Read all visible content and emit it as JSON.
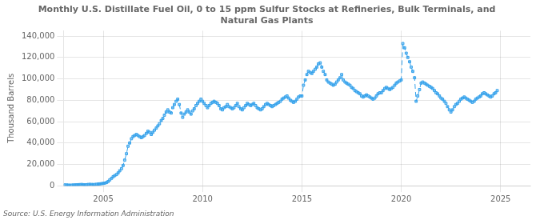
{
  "chart_data": {
    "type": "line",
    "title": "Monthly U.S. Distillate Fuel Oil, 0 to 15 ppm Sulfur Stocks at Refineries, Bulk Terminals, and\nNatural Gas Plants",
    "ylabel": "Thousand Barrels",
    "annotations": [
      "Source: U.S. Energy Information Administration"
    ],
    "marker": "square",
    "line_style": "dashed",
    "grid": true,
    "xlim": [
      2003.0,
      2026.5
    ],
    "xticks": [
      2005,
      2010,
      2015,
      2020,
      2025
    ],
    "ylim": [
      0,
      145000
    ],
    "yticks": [
      0,
      {
        "value": 20000,
        "label": "20,000"
      },
      {
        "value": 40000,
        "label": "40,000"
      },
      {
        "value": 60000,
        "label": "60,000"
      },
      {
        "value": 80000,
        "label": "80,000"
      },
      {
        "value": 100000,
        "label": "100,000"
      },
      {
        "value": 120000,
        "label": "120,000"
      },
      {
        "value": 140000,
        "label": "140,000"
      }
    ],
    "x": [
      2003.08,
      2003.17,
      2003.25,
      2003.33,
      2003.42,
      2003.5,
      2003.58,
      2003.67,
      2003.75,
      2003.83,
      2003.92,
      2004.0,
      2004.08,
      2004.17,
      2004.25,
      2004.33,
      2004.42,
      2004.5,
      2004.58,
      2004.67,
      2004.75,
      2004.83,
      2004.92,
      2005.0,
      2005.08,
      2005.17,
      2005.25,
      2005.33,
      2005.42,
      2005.5,
      2005.58,
      2005.67,
      2005.75,
      2005.83,
      2005.92,
      2006.0,
      2006.08,
      2006.17,
      2006.25,
      2006.33,
      2006.42,
      2006.5,
      2006.58,
      2006.67,
      2006.75,
      2006.83,
      2006.92,
      2007.0,
      2007.08,
      2007.17,
      2007.25,
      2007.33,
      2007.42,
      2007.5,
      2007.58,
      2007.67,
      2007.75,
      2007.83,
      2007.92,
      2008.0,
      2008.08,
      2008.17,
      2008.25,
      2008.33,
      2008.42,
      2008.5,
      2008.58,
      2008.67,
      2008.75,
      2008.83,
      2008.92,
      2009.0,
      2009.08,
      2009.17,
      2009.25,
      2009.33,
      2009.42,
      2009.5,
      2009.58,
      2009.67,
      2009.75,
      2009.83,
      2009.92,
      2010.0,
      2010.08,
      2010.17,
      2010.25,
      2010.33,
      2010.42,
      2010.5,
      2010.58,
      2010.67,
      2010.75,
      2010.83,
      2010.92,
      2011.0,
      2011.08,
      2011.17,
      2011.25,
      2011.33,
      2011.42,
      2011.5,
      2011.58,
      2011.67,
      2011.75,
      2011.83,
      2011.92,
      2012.0,
      2012.08,
      2012.17,
      2012.25,
      2012.33,
      2012.42,
      2012.5,
      2012.58,
      2012.67,
      2012.75,
      2012.83,
      2012.92,
      2013.0,
      2013.08,
      2013.17,
      2013.25,
      2013.33,
      2013.42,
      2013.5,
      2013.58,
      2013.67,
      2013.75,
      2013.83,
      2013.92,
      2014.0,
      2014.08,
      2014.17,
      2014.25,
      2014.33,
      2014.42,
      2014.5,
      2014.58,
      2014.67,
      2014.75,
      2014.83,
      2014.92,
      2015.0,
      2015.08,
      2015.17,
      2015.25,
      2015.33,
      2015.42,
      2015.5,
      2015.58,
      2015.67,
      2015.75,
      2015.83,
      2015.92,
      2016.0,
      2016.08,
      2016.17,
      2016.25,
      2016.33,
      2016.42,
      2016.5,
      2016.58,
      2016.67,
      2016.75,
      2016.83,
      2016.92,
      2017.0,
      2017.08,
      2017.17,
      2017.25,
      2017.33,
      2017.42,
      2017.5,
      2017.58,
      2017.67,
      2017.75,
      2017.83,
      2017.92,
      2018.0,
      2018.08,
      2018.17,
      2018.25,
      2018.33,
      2018.42,
      2018.5,
      2018.58,
      2018.67,
      2018.75,
      2018.83,
      2018.92,
      2019.0,
      2019.08,
      2019.17,
      2019.25,
      2019.33,
      2019.42,
      2019.5,
      2019.58,
      2019.67,
      2019.75,
      2019.83,
      2019.92,
      2020.0,
      2020.08,
      2020.17,
      2020.25,
      2020.33,
      2020.42,
      2020.5,
      2020.58,
      2020.67,
      2020.75,
      2020.83,
      2020.92,
      2021.0,
      2021.08,
      2021.17,
      2021.25,
      2021.33,
      2021.42,
      2021.5,
      2021.58,
      2021.67,
      2021.75,
      2021.83,
      2021.92,
      2022.0,
      2022.08,
      2022.17,
      2022.25,
      2022.33,
      2022.42,
      2022.5,
      2022.58,
      2022.67,
      2022.75,
      2022.83,
      2022.92,
      2023.0,
      2023.08,
      2023.17,
      2023.25,
      2023.33,
      2023.42,
      2023.5,
      2023.58,
      2023.67,
      2023.75,
      2023.83,
      2023.92,
      2024.0,
      2024.08,
      2024.17,
      2024.25,
      2024.33,
      2024.42,
      2024.5,
      2024.58,
      2024.67,
      2024.75,
      2024.83
    ],
    "values": [
      800,
      700,
      600,
      500,
      600,
      700,
      800,
      900,
      1000,
      1100,
      1200,
      1000,
      900,
      1000,
      1200,
      1300,
      1200,
      1100,
      1200,
      1400,
      1600,
      1800,
      2000,
      2200,
      2500,
      3000,
      4000,
      5500,
      7000,
      8500,
      9500,
      10500,
      12000,
      14000,
      16000,
      19000,
      24000,
      30000,
      37000,
      40000,
      44000,
      46000,
      47000,
      48000,
      47000,
      46000,
      45000,
      46000,
      47000,
      49000,
      51000,
      50000,
      48000,
      50000,
      52000,
      54000,
      56000,
      58000,
      61000,
      63000,
      66000,
      69000,
      71000,
      69000,
      68000,
      73000,
      76000,
      79000,
      81000,
      76000,
      68000,
      64000,
      67000,
      69000,
      71000,
      69000,
      67000,
      70000,
      72000,
      75000,
      77000,
      79000,
      81000,
      79000,
      77000,
      75000,
      73000,
      75000,
      77000,
      78000,
      79000,
      78000,
      77000,
      75000,
      72000,
      71000,
      73000,
      74000,
      76000,
      74000,
      73000,
      72000,
      73000,
      75000,
      77000,
      74000,
      72000,
      71000,
      73000,
      75000,
      77000,
      76000,
      75000,
      76000,
      77000,
      75000,
      73000,
      72000,
      71000,
      72000,
      74000,
      76000,
      77000,
      76000,
      75000,
      74000,
      75000,
      76000,
      77000,
      78000,
      79000,
      81000,
      82000,
      83000,
      84000,
      82000,
      80000,
      79000,
      78000,
      79000,
      81000,
      83000,
      84000,
      84000,
      94000,
      99000,
      104000,
      107000,
      106000,
      105000,
      107000,
      109000,
      111000,
      114000,
      115000,
      111000,
      107000,
      104000,
      99000,
      97000,
      96000,
      95000,
      94000,
      95000,
      97000,
      99000,
      101000,
      104000,
      99000,
      97000,
      96000,
      95000,
      94000,
      92000,
      91000,
      89000,
      88000,
      87000,
      86000,
      84000,
      83000,
      84000,
      85000,
      84000,
      83000,
      82000,
      81000,
      82000,
      84000,
      86000,
      87000,
      87000,
      89000,
      91000,
      92000,
      91000,
      90000,
      91000,
      92000,
      94000,
      96000,
      97000,
      98000,
      99000,
      133000,
      129000,
      124000,
      120000,
      116000,
      111000,
      107000,
      101000,
      79000,
      84000,
      90000,
      96000,
      97000,
      96000,
      95000,
      94000,
      93000,
      92000,
      91000,
      89000,
      87000,
      86000,
      84000,
      82000,
      81000,
      79000,
      77000,
      74000,
      71000,
      69000,
      71000,
      74000,
      76000,
      77000,
      79000,
      81000,
      82000,
      83000,
      82000,
      81000,
      80000,
      79000,
      78000,
      79000,
      81000,
      82000,
      83000,
      84000,
      86000,
      87000,
      86000,
      85000,
      84000,
      83000,
      84000,
      86000,
      87000,
      89000
    ]
  }
}
